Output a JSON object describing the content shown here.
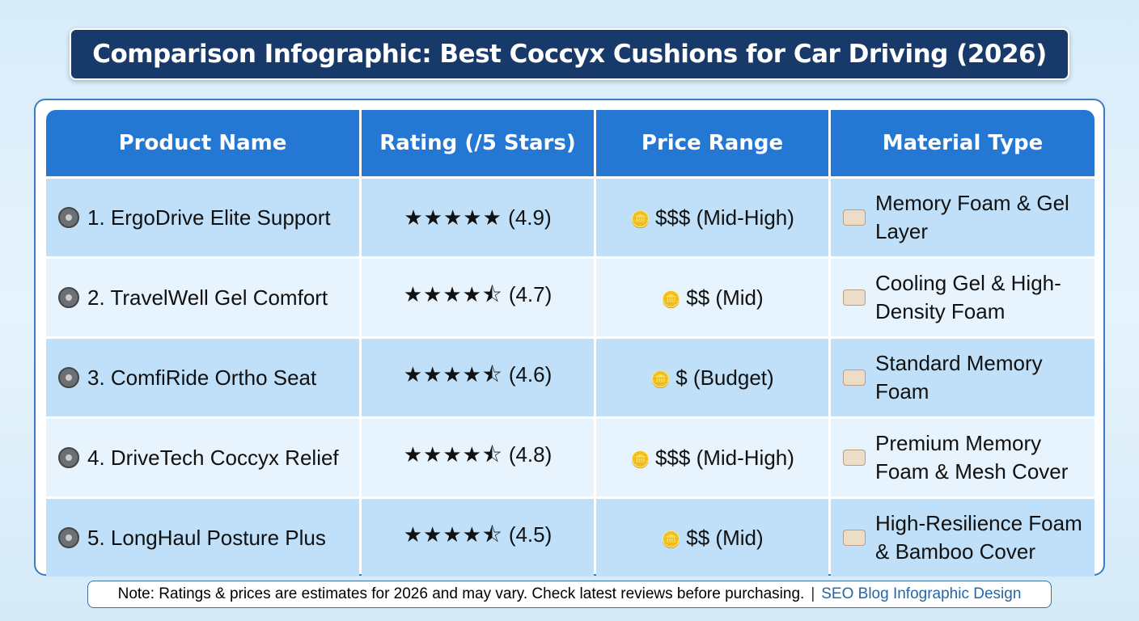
{
  "title": "Comparison Infographic: Best Coccyx Cushions for Car Driving (2026)",
  "table": {
    "headers": [
      "Product Name",
      "Rating (/5 Stars)",
      "Price Range",
      "Material Type"
    ],
    "rows": [
      {
        "name": "1. ErgoDrive Elite Support",
        "stars": "★★★★★",
        "rating": "(4.9)",
        "price": "$$$ (Mid-High)",
        "material": "Memory Foam & Gel Layer"
      },
      {
        "name": "2. TravelWell Gel Comfort",
        "stars": "★★★★⯪",
        "rating": "(4.7)",
        "price": "$$ (Mid)",
        "material": "Cooling Gel & High-Density Foam"
      },
      {
        "name": "3. ComfiRide Ortho Seat",
        "stars": "★★★★⯪",
        "rating": "(4.6)",
        "price": "$ (Budget)",
        "material": "Standard Memory Foam"
      },
      {
        "name": "4. DriveTech Coccyx Relief",
        "stars": "★★★★⯪",
        "rating": "(4.8)",
        "price": "$$$ (Mid-High)",
        "material": "Premium Memory Foam & Mesh Cover"
      },
      {
        "name": "5. LongHaul Posture Plus",
        "stars": "★★★★⯪",
        "rating": "(4.5)",
        "price": "$$ (Mid)",
        "material": "High-Resilience Foam & Bamboo Cover"
      }
    ]
  },
  "icons": {
    "product": "steering-wheel-icon",
    "price": "coins-icon",
    "material": "cushion-icon"
  },
  "footer": {
    "note": "Note: Ratings & prices are estimates for 2026 and may vary. Check latest reviews before purchasing.",
    "separator": "|",
    "brand": "SEO Blog Infographic Design"
  },
  "colors": {
    "title_bg": "#173a6b",
    "header_bg": "#2478d4",
    "row_odd": "#bfe0f8",
    "row_even": "#e8f4fd"
  }
}
